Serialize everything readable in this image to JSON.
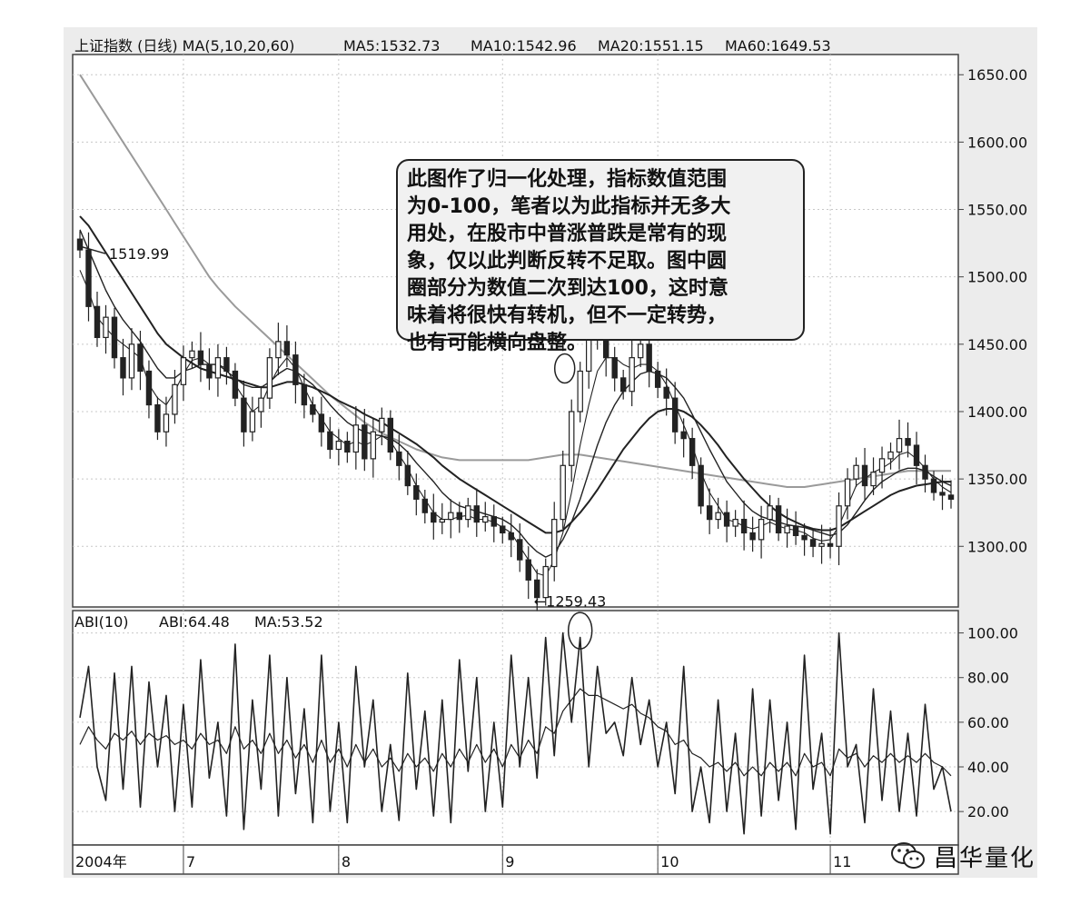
{
  "chart_data": [
    {
      "type": "candlestick",
      "title": "上证指数 (日线) MA(5,10,20,60)",
      "indicators": [
        {
          "name": "MA5",
          "label": "MA5:1532.73",
          "value": 1532.73
        },
        {
          "name": "MA10",
          "label": "MA10:1542.96",
          "value": 1542.96
        },
        {
          "name": "MA20",
          "label": "MA20:1551.15",
          "value": 1551.15
        },
        {
          "name": "MA60",
          "label": "MA60:1649.53",
          "value": 1649.53
        }
      ],
      "ylim": [
        1255,
        1665
      ],
      "y_ticks": [
        "1650.00",
        "1600.00",
        "1550.00",
        "1500.00",
        "1450.00",
        "1400.00",
        "1350.00",
        "1300.00"
      ],
      "y_tick_values": [
        1650,
        1600,
        1550,
        1500,
        1450,
        1400,
        1350,
        1300
      ],
      "closes": [
        1520,
        1478,
        1455,
        1470,
        1440,
        1425,
        1450,
        1430,
        1405,
        1385,
        1398,
        1420,
        1440,
        1445,
        1435,
        1425,
        1440,
        1430,
        1410,
        1385,
        1400,
        1410,
        1440,
        1452,
        1442,
        1420,
        1405,
        1398,
        1385,
        1372,
        1378,
        1370,
        1390,
        1365,
        1385,
        1395,
        1370,
        1360,
        1345,
        1335,
        1325,
        1318,
        1320,
        1325,
        1320,
        1330,
        1318,
        1322,
        1315,
        1310,
        1305,
        1290,
        1275,
        1262,
        1285,
        1320,
        1360,
        1400,
        1430,
        1460,
        1455,
        1440,
        1425,
        1415,
        1440,
        1450,
        1430,
        1418,
        1410,
        1385,
        1380,
        1360,
        1330,
        1320,
        1325,
        1315,
        1320,
        1310,
        1305,
        1320,
        1330,
        1310,
        1315,
        1308,
        1305,
        1300,
        1302,
        1300,
        1330,
        1350,
        1360,
        1345,
        1355,
        1365,
        1370,
        1380,
        1375,
        1360,
        1350,
        1340,
        1338,
        1335
      ],
      "ma_lines": {
        "MA5": [
          1505,
          1490,
          1470,
          1462,
          1455,
          1450,
          1445,
          1440,
          1420,
          1410,
          1405,
          1415,
          1428,
          1438,
          1440,
          1435,
          1435,
          1432,
          1420,
          1410,
          1400,
          1405,
          1420,
          1432,
          1440,
          1432,
          1418,
          1405,
          1395,
          1385,
          1380,
          1375,
          1378,
          1375,
          1378,
          1382,
          1378,
          1368,
          1358,
          1345,
          1335,
          1325,
          1320,
          1320,
          1322,
          1323,
          1320,
          1320,
          1318,
          1314,
          1310,
          1300,
          1290,
          1280,
          1278,
          1290,
          1310,
          1340,
          1375,
          1405,
          1430,
          1440,
          1440,
          1435,
          1432,
          1435,
          1435,
          1430,
          1420,
          1405,
          1390,
          1375,
          1355,
          1340,
          1330,
          1320,
          1318,
          1315,
          1313,
          1315,
          1318,
          1315,
          1313,
          1312,
          1310,
          1306,
          1304,
          1305,
          1315,
          1330,
          1345,
          1350,
          1355,
          1358,
          1362,
          1368,
          1370,
          1365,
          1358,
          1350,
          1344,
          1340
        ],
        "MA10": [
          1535,
          1520,
          1505,
          1490,
          1478,
          1468,
          1460,
          1452,
          1442,
          1432,
          1425,
          1425,
          1430,
          1432,
          1435,
          1435,
          1435,
          1430,
          1425,
          1420,
          1418,
          1418,
          1422,
          1428,
          1432,
          1430,
          1425,
          1420,
          1413,
          1405,
          1398,
          1392,
          1388,
          1385,
          1383,
          1382,
          1380,
          1376,
          1370,
          1362,
          1355,
          1348,
          1340,
          1334,
          1330,
          1328,
          1326,
          1324,
          1322,
          1320,
          1316,
          1310,
          1302,
          1296,
          1292,
          1295,
          1305,
          1318,
          1335,
          1355,
          1375,
          1392,
          1405,
          1415,
          1422,
          1428,
          1430,
          1428,
          1425,
          1418,
          1410,
          1398,
          1385,
          1372,
          1360,
          1348,
          1340,
          1332,
          1326,
          1322,
          1320,
          1318,
          1316,
          1315,
          1314,
          1312,
          1310,
          1308,
          1310,
          1316,
          1325,
          1334,
          1342,
          1348,
          1352,
          1356,
          1358,
          1358,
          1356,
          1352,
          1348,
          1345
        ],
        "MA20": [
          1545,
          1538,
          1528,
          1518,
          1508,
          1498,
          1488,
          1478,
          1468,
          1458,
          1450,
          1445,
          1440,
          1436,
          1432,
          1430,
          1428,
          1426,
          1424,
          1422,
          1420,
          1418,
          1418,
          1420,
          1422,
          1422,
          1420,
          1418,
          1415,
          1412,
          1408,
          1405,
          1402,
          1398,
          1395,
          1392,
          1388,
          1384,
          1380,
          1376,
          1371,
          1366,
          1360,
          1355,
          1350,
          1346,
          1342,
          1338,
          1334,
          1330,
          1326,
          1322,
          1318,
          1314,
          1310,
          1310,
          1312,
          1318,
          1325,
          1333,
          1342,
          1352,
          1362,
          1372,
          1380,
          1388,
          1395,
          1400,
          1402,
          1402,
          1400,
          1396,
          1390,
          1383,
          1375,
          1366,
          1358,
          1350,
          1343,
          1336,
          1330,
          1325,
          1321,
          1318,
          1315,
          1313,
          1312,
          1312,
          1314,
          1318,
          1322,
          1326,
          1330,
          1334,
          1338,
          1341,
          1343,
          1345,
          1346,
          1347,
          1348,
          1348
        ],
        "MA60": [
          1650,
          1640,
          1630,
          1620,
          1610,
          1600,
          1590,
          1580,
          1570,
          1560,
          1550,
          1540,
          1530,
          1520,
          1510,
          1500,
          1492,
          1485,
          1478,
          1472,
          1466,
          1460,
          1454,
          1448,
          1442,
          1436,
          1430,
          1424,
          1418,
          1412,
          1407,
          1402,
          1397,
          1392,
          1388,
          1384,
          1381,
          1378,
          1375,
          1372,
          1370,
          1368,
          1366,
          1365,
          1364,
          1364,
          1364,
          1364,
          1364,
          1364,
          1364,
          1364,
          1364,
          1365,
          1366,
          1367,
          1368,
          1368,
          1368,
          1367,
          1366,
          1365,
          1364,
          1363,
          1362,
          1361,
          1360,
          1359,
          1358,
          1357,
          1356,
          1355,
          1354,
          1353,
          1352,
          1351,
          1350,
          1349,
          1348,
          1347,
          1346,
          1345,
          1344,
          1344,
          1344,
          1345,
          1346,
          1347,
          1348,
          1349,
          1350,
          1351,
          1352,
          1353,
          1354,
          1355,
          1356,
          1356,
          1356,
          1356,
          1356,
          1356
        ]
      },
      "annotations": [
        {
          "label": "1519.99",
          "value": 1519.99
        },
        {
          "label": "←1259.43",
          "value": 1259.43
        }
      ],
      "callout_text": "此图作了归一化处理，指标数值范围\n为0-100，笔者以为此指标并无多大\n用处，在股市中普涨普跌是常有的现\n象，仅以此判断反转不足取。图中圆\n圈部分为数值二次到达100，这时意\n味着将很快有转机，但不一定转势，\n也有可能横向盘整。",
      "grid": true,
      "legend": "none"
    },
    {
      "type": "line",
      "title": "ABI(10)",
      "indicators": [
        {
          "name": "ABI",
          "label": "ABI:64.48",
          "value": 64.48
        },
        {
          "name": "MA",
          "label": "MA:53.52",
          "value": 53.52
        }
      ],
      "ylim": [
        5,
        110
      ],
      "y_ticks": [
        "100.00",
        "80.00",
        "60.00",
        "40.00",
        "20.00"
      ],
      "y_tick_values": [
        100,
        80,
        60,
        40,
        20
      ],
      "series": [
        {
          "name": "ABI",
          "values": [
            62,
            85,
            40,
            25,
            82,
            30,
            85,
            22,
            78,
            40,
            72,
            20,
            68,
            22,
            88,
            35,
            60,
            18,
            95,
            12,
            70,
            30,
            90,
            18,
            80,
            28,
            66,
            15,
            90,
            20,
            60,
            15,
            85,
            40,
            70,
            20,
            50,
            16,
            82,
            30,
            65,
            18,
            70,
            15,
            88,
            38,
            80,
            20,
            60,
            22,
            90,
            40,
            80,
            35,
            98,
            45,
            100,
            60,
            98,
            40,
            85,
            55,
            60,
            45,
            80,
            50,
            70,
            40,
            60,
            28,
            85,
            20,
            40,
            15,
            70,
            20,
            55,
            10,
            75,
            18,
            70,
            25,
            60,
            12,
            90,
            30,
            55,
            10,
            100,
            40,
            50,
            15,
            75,
            25,
            65,
            20,
            55,
            18,
            68,
            30,
            40,
            20
          ]
        },
        {
          "name": "MA",
          "values": [
            50,
            58,
            52,
            48,
            55,
            52,
            56,
            50,
            55,
            52,
            54,
            50,
            52,
            48,
            55,
            50,
            52,
            46,
            58,
            48,
            52,
            46,
            55,
            46,
            52,
            44,
            50,
            42,
            52,
            42,
            48,
            40,
            50,
            42,
            48,
            40,
            44,
            38,
            46,
            40,
            44,
            38,
            46,
            40,
            48,
            42,
            50,
            42,
            48,
            40,
            50,
            44,
            52,
            46,
            58,
            55,
            65,
            70,
            75,
            72,
            72,
            70,
            68,
            66,
            68,
            64,
            62,
            58,
            56,
            50,
            52,
            46,
            44,
            40,
            42,
            38,
            42,
            36,
            40,
            36,
            42,
            38,
            42,
            36,
            46,
            40,
            42,
            36,
            48,
            44,
            46,
            40,
            45,
            42,
            46,
            42,
            45,
            42,
            46,
            42,
            40,
            36
          ]
        }
      ],
      "grid": true,
      "legend": "none"
    }
  ],
  "x_axis": {
    "labels": [
      "2004年",
      "7",
      "8",
      "9",
      "10",
      "11"
    ],
    "label_indices": [
      0,
      12,
      30,
      49,
      67,
      87
    ],
    "count": 102
  },
  "colors": {
    "background": "#ececec",
    "plot": "#ffffff",
    "line": "#222222",
    "ma60": "#9a9a9a",
    "grid": "#c8c8c8",
    "axis": "#444444"
  },
  "watermark": {
    "text": "昌华量化",
    "icon": "wechat-icon"
  }
}
